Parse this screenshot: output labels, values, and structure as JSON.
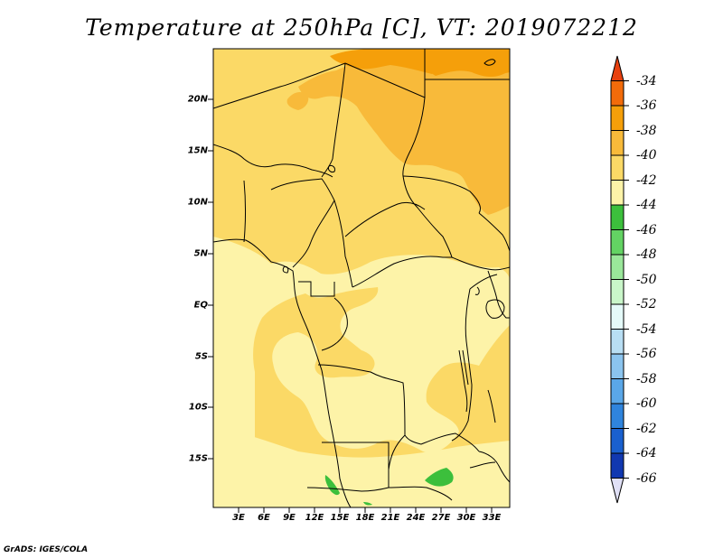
{
  "title": "Temperature at 250hPa [C], VT: 2019072212",
  "credit": "GrADS: IGES/COLA",
  "map": {
    "lat_ticks": [
      "20N",
      "15N",
      "10N",
      "5N",
      "EQ",
      "5S",
      "10S",
      "15S"
    ],
    "lon_ticks": [
      "3E",
      "6E",
      "9E",
      "12E",
      "15E",
      "18E",
      "21E",
      "24E",
      "27E",
      "30E",
      "33E"
    ]
  },
  "colorbar": {
    "levels": [
      "-34",
      "-36",
      "-38",
      "-40",
      "-42",
      "-44",
      "-46",
      "-48",
      "-50",
      "-52",
      "-54",
      "-56",
      "-58",
      "-60",
      "-62",
      "-64",
      "-66"
    ],
    "colors": [
      "#e8410f",
      "#f26b0a",
      "#f59f0a",
      "#f8ba3a",
      "#fbd966",
      "#fdf3a8",
      "#3cbf3c",
      "#63d363",
      "#9ae79a",
      "#c9f6c9",
      "#e5faf9",
      "#b8def3",
      "#8bc4ee",
      "#5aa7e8",
      "#2f84dd",
      "#1a60ce",
      "#1138b0",
      "#0b1c7a",
      "#e0e0f6"
    ]
  }
}
